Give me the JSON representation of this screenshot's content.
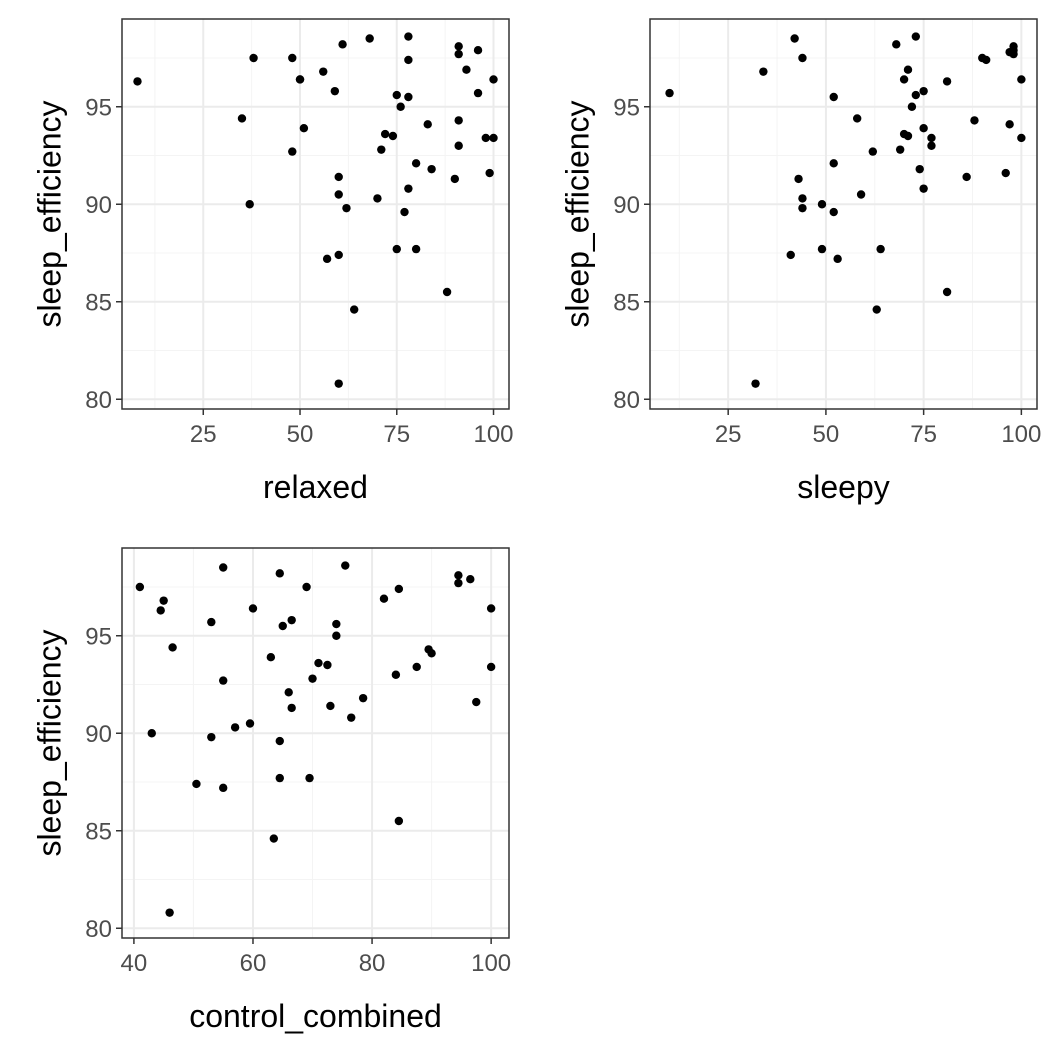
{
  "chart_data": [
    {
      "type": "scatter",
      "xlabel": "relaxed",
      "ylabel": "sleep_efficiency",
      "xlim": [
        4,
        104
      ],
      "ylim": [
        79.5,
        99.5
      ],
      "xticks": [
        25,
        50,
        75,
        100
      ],
      "yticks": [
        80,
        85,
        90,
        95
      ],
      "grid": true,
      "points": [
        {
          "x": 8,
          "y": 96.3
        },
        {
          "x": 35,
          "y": 94.4
        },
        {
          "x": 37,
          "y": 90.0
        },
        {
          "x": 38,
          "y": 97.5
        },
        {
          "x": 48,
          "y": 97.5
        },
        {
          "x": 48,
          "y": 92.7
        },
        {
          "x": 50,
          "y": 96.4
        },
        {
          "x": 50,
          "y": 96.4
        },
        {
          "x": 51,
          "y": 93.9
        },
        {
          "x": 56,
          "y": 96.8
        },
        {
          "x": 57,
          "y": 87.2
        },
        {
          "x": 59,
          "y": 95.8
        },
        {
          "x": 60,
          "y": 91.4
        },
        {
          "x": 60,
          "y": 90.5
        },
        {
          "x": 60,
          "y": 87.4
        },
        {
          "x": 60,
          "y": 80.8
        },
        {
          "x": 61,
          "y": 98.2
        },
        {
          "x": 62,
          "y": 89.8
        },
        {
          "x": 64,
          "y": 84.6
        },
        {
          "x": 68,
          "y": 98.5
        },
        {
          "x": 70,
          "y": 90.3
        },
        {
          "x": 71,
          "y": 92.8
        },
        {
          "x": 72,
          "y": 93.6
        },
        {
          "x": 74,
          "y": 93.5
        },
        {
          "x": 75,
          "y": 95.6
        },
        {
          "x": 75,
          "y": 87.7
        },
        {
          "x": 76,
          "y": 95.0
        },
        {
          "x": 77,
          "y": 89.6
        },
        {
          "x": 78,
          "y": 98.6
        },
        {
          "x": 78,
          "y": 97.4
        },
        {
          "x": 78,
          "y": 95.5
        },
        {
          "x": 78,
          "y": 90.8
        },
        {
          "x": 80,
          "y": 92.1
        },
        {
          "x": 80,
          "y": 87.7
        },
        {
          "x": 83,
          "y": 94.1
        },
        {
          "x": 84,
          "y": 91.8
        },
        {
          "x": 88,
          "y": 85.5
        },
        {
          "x": 90,
          "y": 91.3
        },
        {
          "x": 91,
          "y": 98.1
        },
        {
          "x": 91,
          "y": 97.7
        },
        {
          "x": 91,
          "y": 94.3
        },
        {
          "x": 91,
          "y": 93.0
        },
        {
          "x": 93,
          "y": 96.9
        },
        {
          "x": 96,
          "y": 97.9
        },
        {
          "x": 96,
          "y": 95.7
        },
        {
          "x": 98,
          "y": 93.4
        },
        {
          "x": 99,
          "y": 91.6
        },
        {
          "x": 100,
          "y": 96.4
        },
        {
          "x": 100,
          "y": 93.4
        }
      ]
    },
    {
      "type": "scatter",
      "xlabel": "sleepy",
      "ylabel": "sleep_efficiency",
      "xlim": [
        5,
        104
      ],
      "ylim": [
        79.5,
        99.5
      ],
      "xticks": [
        25,
        50,
        75,
        100
      ],
      "yticks": [
        80,
        85,
        90,
        95
      ],
      "grid": true,
      "points": [
        {
          "x": 10,
          "y": 95.7
        },
        {
          "x": 32,
          "y": 80.8
        },
        {
          "x": 34,
          "y": 96.8
        },
        {
          "x": 41,
          "y": 87.4
        },
        {
          "x": 42,
          "y": 98.5
        },
        {
          "x": 43,
          "y": 91.3
        },
        {
          "x": 44,
          "y": 97.5
        },
        {
          "x": 44,
          "y": 90.3
        },
        {
          "x": 44,
          "y": 89.8
        },
        {
          "x": 49,
          "y": 90.0
        },
        {
          "x": 49,
          "y": 87.7
        },
        {
          "x": 52,
          "y": 95.5
        },
        {
          "x": 52,
          "y": 92.1
        },
        {
          "x": 52,
          "y": 89.6
        },
        {
          "x": 53,
          "y": 87.2
        },
        {
          "x": 58,
          "y": 94.4
        },
        {
          "x": 59,
          "y": 90.5
        },
        {
          "x": 62,
          "y": 92.7
        },
        {
          "x": 63,
          "y": 84.6
        },
        {
          "x": 64,
          "y": 87.7
        },
        {
          "x": 68,
          "y": 98.2
        },
        {
          "x": 69,
          "y": 92.8
        },
        {
          "x": 70,
          "y": 96.4
        },
        {
          "x": 70,
          "y": 93.6
        },
        {
          "x": 71,
          "y": 96.9
        },
        {
          "x": 71,
          "y": 93.5
        },
        {
          "x": 72,
          "y": 95.0
        },
        {
          "x": 73,
          "y": 98.6
        },
        {
          "x": 73,
          "y": 95.6
        },
        {
          "x": 74,
          "y": 91.8
        },
        {
          "x": 75,
          "y": 95.8
        },
        {
          "x": 75,
          "y": 93.9
        },
        {
          "x": 75,
          "y": 90.8
        },
        {
          "x": 77,
          "y": 93.4
        },
        {
          "x": 77,
          "y": 93.0
        },
        {
          "x": 81,
          "y": 96.3
        },
        {
          "x": 81,
          "y": 85.5
        },
        {
          "x": 86,
          "y": 91.4
        },
        {
          "x": 88,
          "y": 94.3
        },
        {
          "x": 90,
          "y": 97.5
        },
        {
          "x": 91,
          "y": 97.4
        },
        {
          "x": 96,
          "y": 91.6
        },
        {
          "x": 97,
          "y": 97.8
        },
        {
          "x": 97,
          "y": 94.1
        },
        {
          "x": 98,
          "y": 98.1
        },
        {
          "x": 98,
          "y": 97.7
        },
        {
          "x": 98,
          "y": 97.9
        },
        {
          "x": 100,
          "y": 96.4
        },
        {
          "x": 100,
          "y": 93.4
        }
      ]
    },
    {
      "type": "scatter",
      "xlabel": "control_combined",
      "ylabel": "sleep_efficiency",
      "xlim": [
        38,
        103
      ],
      "ylim": [
        79.5,
        99.5
      ],
      "xticks": [
        40,
        60,
        80,
        100
      ],
      "yticks": [
        80,
        85,
        90,
        95
      ],
      "grid": true,
      "points": [
        {
          "x": 41,
          "y": 97.5
        },
        {
          "x": 43,
          "y": 90.0
        },
        {
          "x": 44.5,
          "y": 96.3
        },
        {
          "x": 45,
          "y": 96.8
        },
        {
          "x": 46,
          "y": 80.8
        },
        {
          "x": 46.5,
          "y": 94.4
        },
        {
          "x": 50.5,
          "y": 87.4
        },
        {
          "x": 53,
          "y": 95.7
        },
        {
          "x": 53,
          "y": 89.8
        },
        {
          "x": 55,
          "y": 98.5
        },
        {
          "x": 55,
          "y": 92.7
        },
        {
          "x": 55,
          "y": 87.2
        },
        {
          "x": 57,
          "y": 90.3
        },
        {
          "x": 59.5,
          "y": 90.5
        },
        {
          "x": 60,
          "y": 96.4
        },
        {
          "x": 63,
          "y": 93.9
        },
        {
          "x": 63.5,
          "y": 84.6
        },
        {
          "x": 64.5,
          "y": 98.2
        },
        {
          "x": 64.5,
          "y": 89.6
        },
        {
          "x": 64.5,
          "y": 87.7
        },
        {
          "x": 65,
          "y": 95.5
        },
        {
          "x": 66,
          "y": 92.1
        },
        {
          "x": 66.5,
          "y": 95.8
        },
        {
          "x": 66.5,
          "y": 91.3
        },
        {
          "x": 69,
          "y": 97.5
        },
        {
          "x": 69.5,
          "y": 87.7
        },
        {
          "x": 70,
          "y": 92.8
        },
        {
          "x": 71,
          "y": 93.6
        },
        {
          "x": 72.5,
          "y": 93.5
        },
        {
          "x": 73,
          "y": 91.4
        },
        {
          "x": 74,
          "y": 95.6
        },
        {
          "x": 74,
          "y": 95.0
        },
        {
          "x": 75.5,
          "y": 98.6
        },
        {
          "x": 76.5,
          "y": 90.8
        },
        {
          "x": 78.5,
          "y": 91.8
        },
        {
          "x": 82,
          "y": 96.9
        },
        {
          "x": 84,
          "y": 93.0
        },
        {
          "x": 84.5,
          "y": 97.4
        },
        {
          "x": 84.5,
          "y": 85.5
        },
        {
          "x": 87.5,
          "y": 93.4
        },
        {
          "x": 89.5,
          "y": 94.3
        },
        {
          "x": 90,
          "y": 94.1
        },
        {
          "x": 94.5,
          "y": 98.1
        },
        {
          "x": 94.5,
          "y": 97.7
        },
        {
          "x": 96.5,
          "y": 97.9
        },
        {
          "x": 97.5,
          "y": 91.6
        },
        {
          "x": 100,
          "y": 96.4
        },
        {
          "x": 100,
          "y": 93.4
        }
      ]
    }
  ]
}
